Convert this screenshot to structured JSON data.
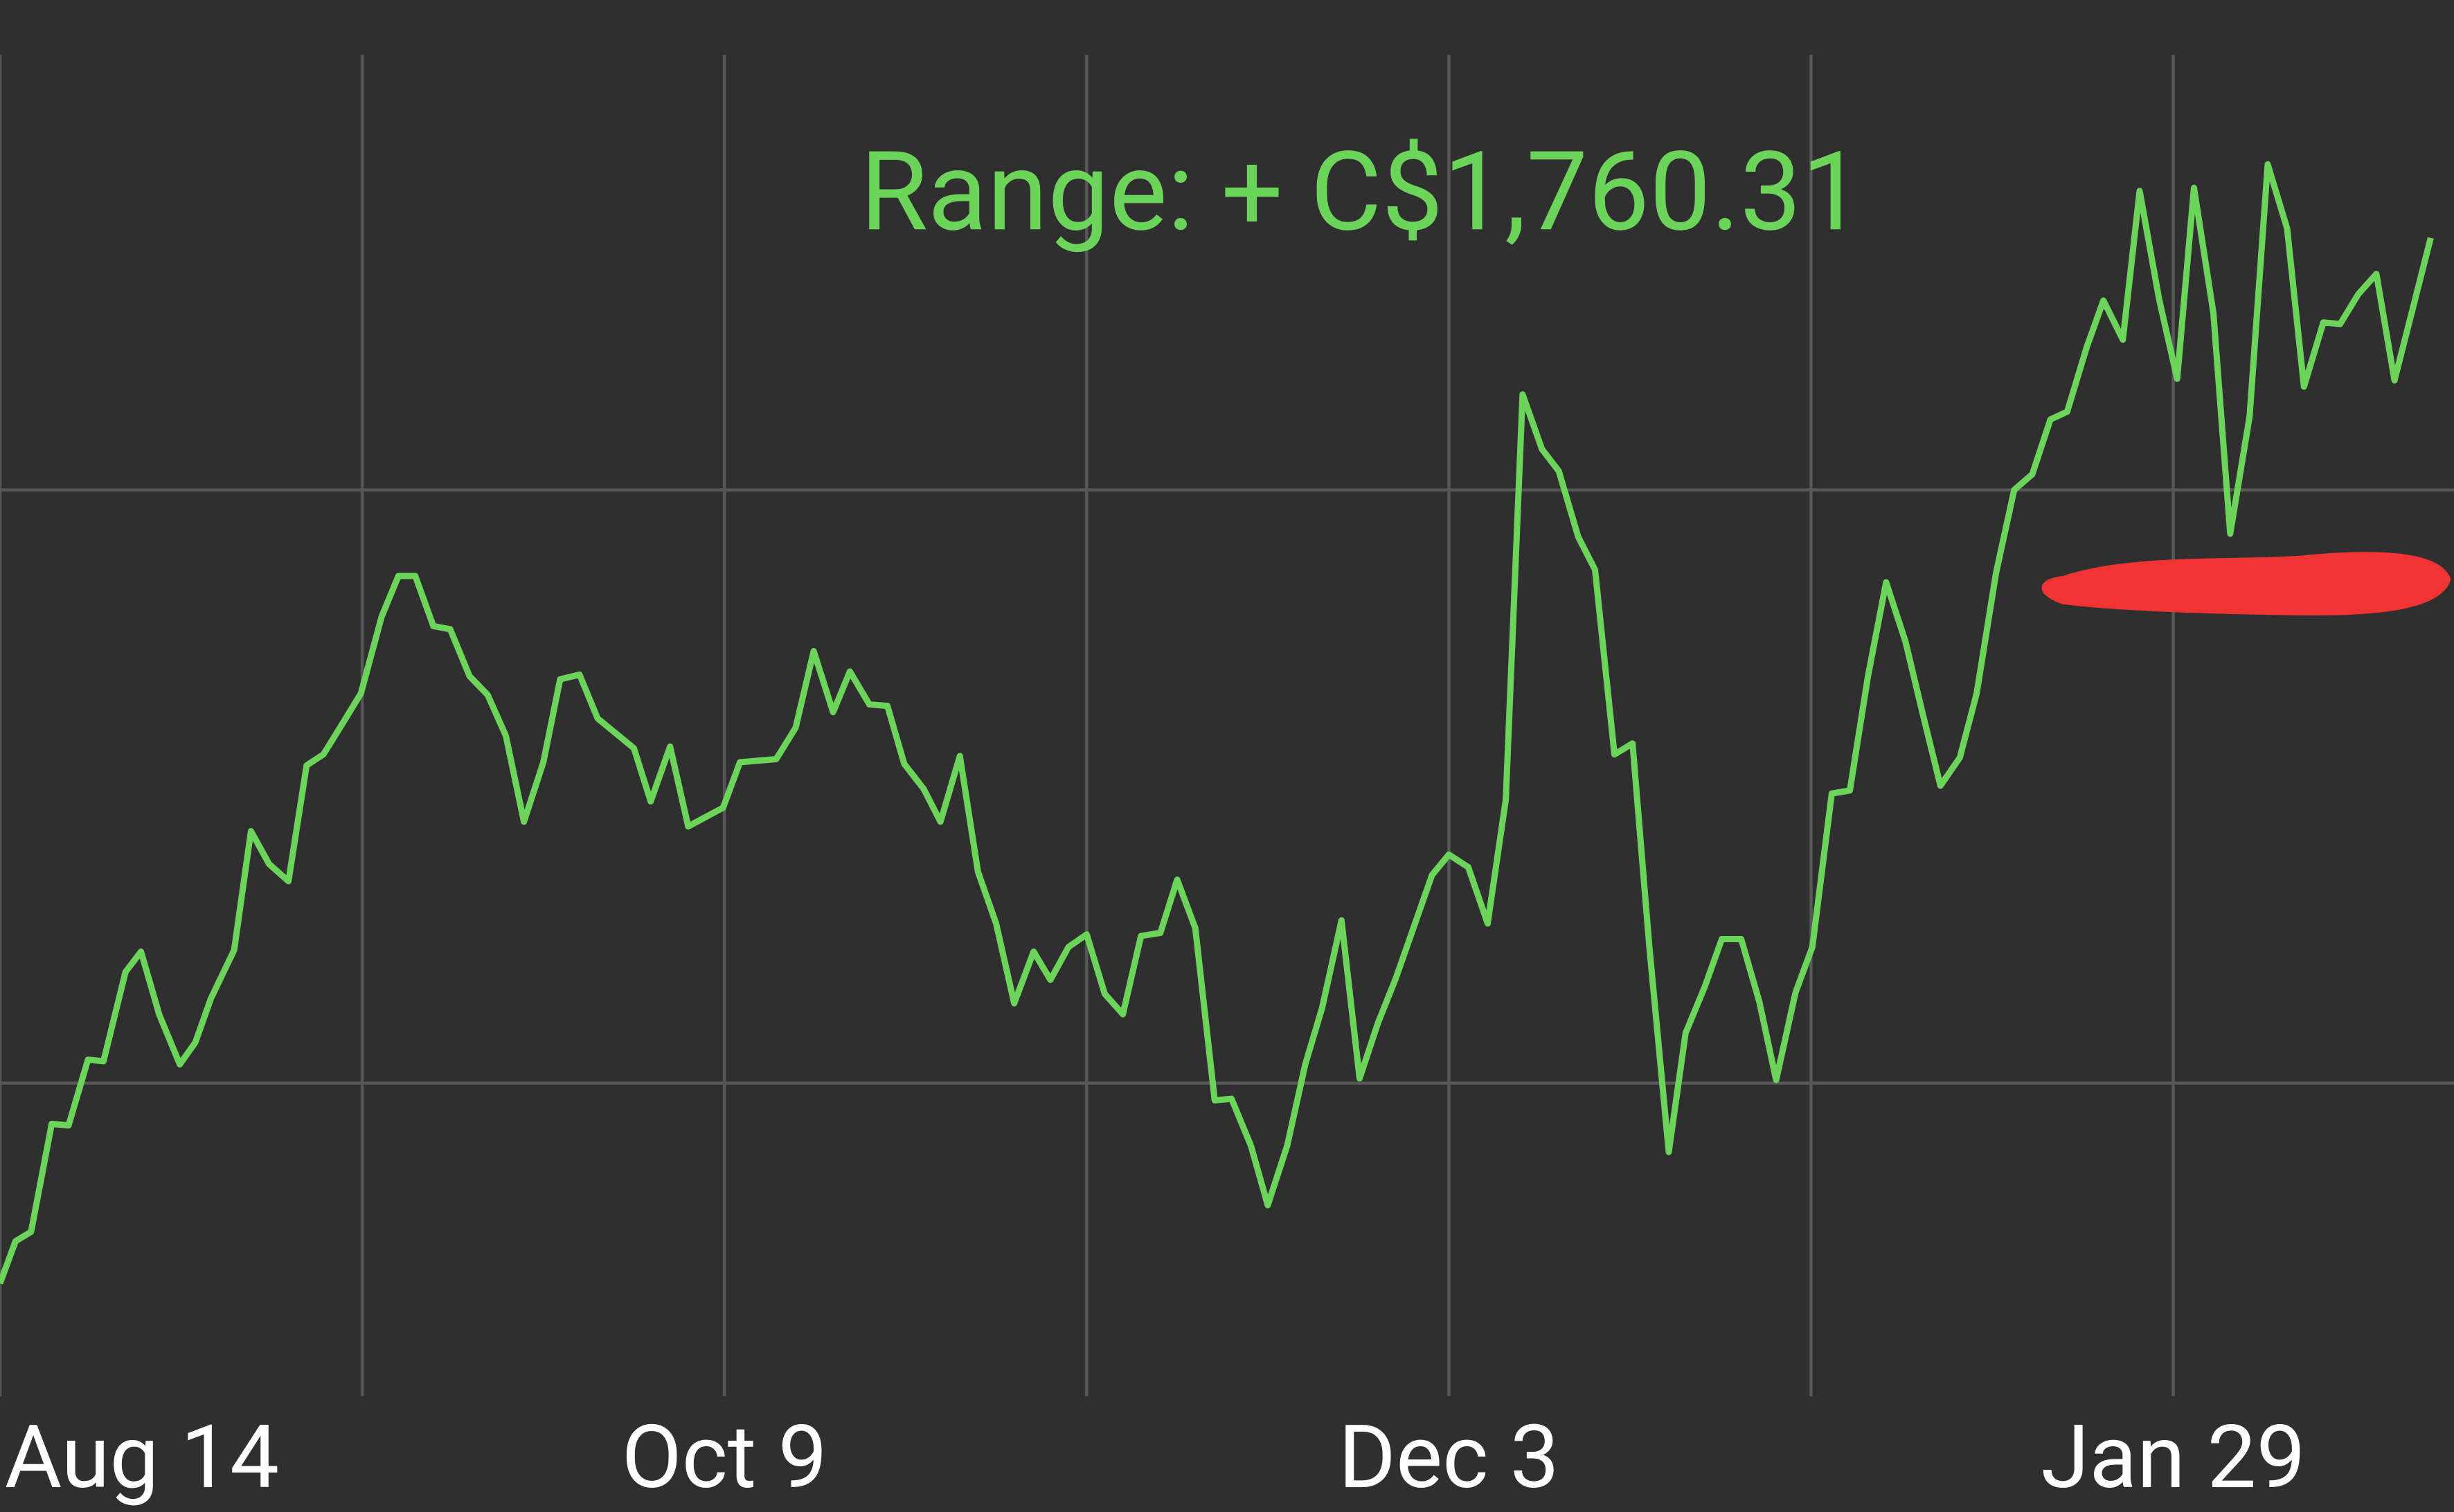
{
  "chart_data": {
    "type": "line",
    "title": "Range: + C$1,760.31",
    "color": "#6cd45a",
    "title_color": "#6cd45a",
    "grid": true,
    "xlim": [
      0,
      189.7
    ],
    "ylim": [
      0,
      857
    ],
    "xticks": [
      {
        "value": 0,
        "label": "Aug 14"
      },
      {
        "value": 56,
        "label": "Oct 9"
      },
      {
        "value": 112,
        "label": "Dec 3"
      },
      {
        "value": 168,
        "label": "Jan 29"
      }
    ],
    "xgrid": [
      0,
      28,
      56,
      84,
      112,
      140,
      168
    ],
    "ygrid": [
      200,
      579
    ],
    "x": [
      0,
      1.2,
      2.4,
      4.0,
      5.3,
      6.8,
      8.0,
      9.7,
      10.9,
      12.3,
      13.9,
      15.1,
      16.3,
      18.1,
      19.4,
      20.8,
      22.3,
      23.7,
      25.0,
      26.5,
      27.9,
      29.5,
      30.8,
      32.1,
      33.5,
      34.8,
      36.3,
      37.7,
      39.1,
      40.5,
      42.0,
      43.3,
      44.8,
      46.2,
      49.0,
      50.3,
      51.8,
      53.2,
      55.9,
      57.2,
      60.0,
      61.5,
      62.9,
      64.4,
      65.7,
      67.2,
      68.6,
      69.9,
      71.4,
      72.7,
      74.2,
      75.6,
      77.0,
      78.4,
      79.9,
      81.2,
      82.6,
      84.0,
      85.4,
      86.8,
      88.2,
      89.7,
      91.0,
      92.4,
      93.9,
      95.2,
      96.7,
      98.0,
      99.5,
      100.9,
      102.2,
      103.7,
      105.1,
      106.5,
      107.9,
      109.3,
      110.7,
      112.0,
      113.5,
      115.0,
      116.4,
      117.7,
      119.2,
      120.5,
      122.0,
      123.3,
      124.8,
      126.2,
      127.5,
      129.0,
      130.3,
      131.8,
      133.1,
      134.6,
      136.0,
      137.3,
      138.8,
      140.1,
      141.6,
      143.0,
      144.4,
      145.8,
      147.3,
      148.6,
      150.0,
      151.5,
      152.8,
      154.3,
      155.7,
      157.1,
      158.5,
      159.8,
      161.3,
      162.6,
      164.1,
      165.4,
      166.9,
      168.3,
      169.6,
      171.1,
      172.4,
      173.9,
      175.3,
      176.8,
      178.1,
      179.6,
      180.9,
      182.3,
      183.7,
      185.1,
      187.9
    ],
    "values": [
      72,
      99,
      105,
      174,
      173,
      215,
      214,
      271,
      284,
      244,
      212,
      226,
      254,
      285,
      361,
      340,
      329,
      403,
      410,
      430,
      449,
      498,
      524,
      524,
      492,
      490,
      460,
      448,
      422,
      367,
      405,
      458,
      461,
      433,
      414,
      380,
      415,
      364,
      376,
      405,
      407,
      427,
      476,
      437,
      463,
      442,
      441,
      404,
      388,
      367,
      409,
      335,
      302,
      251,
      284,
      266,
      287,
      295,
      257,
      244,
      294,
      296,
      330,
      299,
      189,
      190,
      160,
      122,
      160,
      212,
      248,
      304,
      203,
      238,
      267,
      300,
      333,
      346,
      338,
      302,
      381,
      640,
      605,
      591,
      549,
      528,
      410,
      417,
      287,
      156,
      232,
      262,
      292,
      292,
      252,
      202,
      258,
      287,
      385,
      387,
      460,
      520,
      482,
      437,
      390,
      408,
      449,
      526,
      579,
      589,
      624,
      629,
      670,
      700,
      675,
      770,
      701,
      650,
      772,
      692,
      551,
      626,
      787,
      746,
      645,
      686,
      685,
      704,
      717,
      649,
      740
    ]
  }
}
